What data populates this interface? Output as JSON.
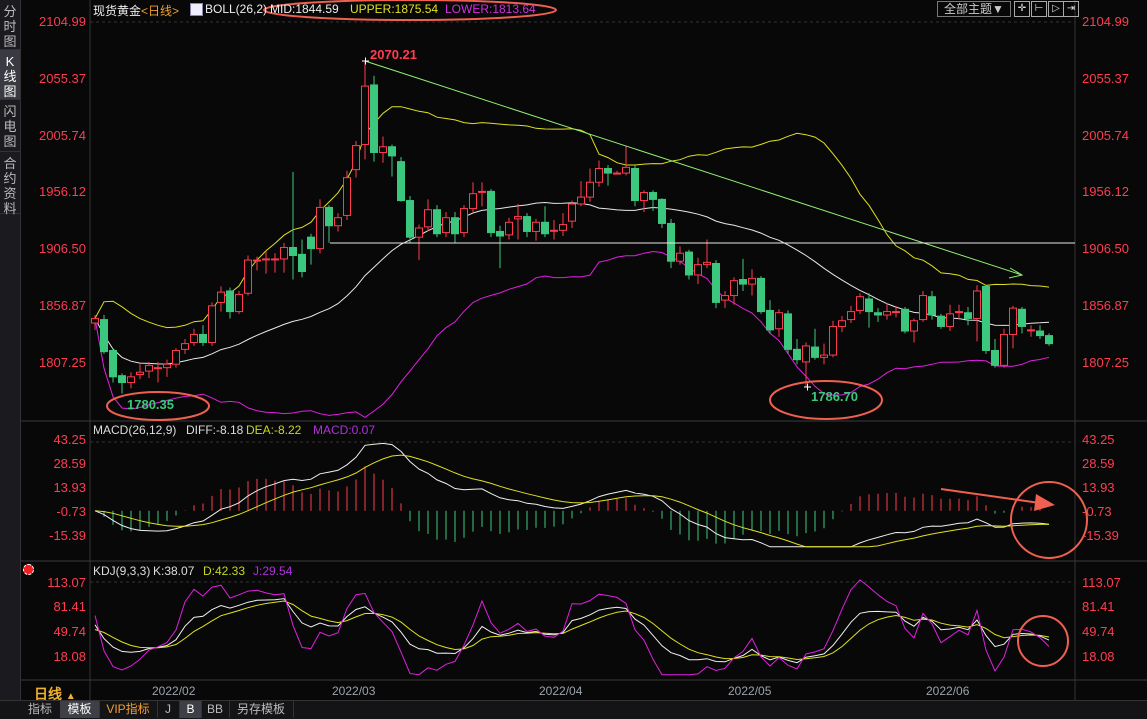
{
  "sidebar": {
    "tabs": [
      {
        "label": "分时图",
        "active": false
      },
      {
        "label": "K线图",
        "active": true
      },
      {
        "label": "闪电图",
        "active": false
      },
      {
        "label": "合约资料",
        "active": false
      }
    ]
  },
  "header": {
    "symbol": "现货黄金",
    "period": "<日线>",
    "boll_label": "BOLL(26,2)",
    "mid": "MID:1844.59",
    "upper": "UPPER:1875.54",
    "lower": "LOWER:1813.64",
    "theme_button": "全部主题▼",
    "toolbar_icons": [
      "crosshair-icon",
      "zoom-range-icon",
      "play-range-icon",
      "move-right-icon"
    ]
  },
  "macd_header": {
    "label": "MACD(26,12,9)",
    "diff": "DIFF:-8.18",
    "dea": "DEA:-8.22",
    "macd": "MACD:0.07"
  },
  "kdj_header": {
    "label": "KDJ(9,3,3)",
    "k": "K:38.07",
    "d": "D:42.33",
    "j": "J:29.54"
  },
  "footer": {
    "period_label": "日线",
    "period_arrow": "▲",
    "tabs": [
      {
        "label": "指标",
        "active": false
      },
      {
        "label": "模板",
        "active": true
      },
      {
        "label": "VIP指标",
        "active": false
      },
      {
        "label": "J",
        "active": false
      },
      {
        "label": "B",
        "active": true
      },
      {
        "label": "BB",
        "active": false
      },
      {
        "label": "另存模板",
        "active": false
      }
    ]
  },
  "colors": {
    "up": "#ff3b4f",
    "down": "#3cc77e",
    "mid": "#e8e8e8",
    "upper": "#e0e020",
    "lower": "#e020e0",
    "trend": "#90ee70",
    "annotation": "#f06050",
    "axis_text": "#ff3c50"
  },
  "chart_data": [
    {
      "type": "candlestick",
      "title": "现货黄金<日线>",
      "y_ticks": [
        "2104.99",
        "2055.37",
        "2005.74",
        "1956.12",
        "1906.50",
        "1856.87",
        "1807.25"
      ],
      "ylim": [
        1757,
        2108.5
      ],
      "x_ticks": [
        "2022/02",
        "2022/03",
        "2022/04",
        "2022/05",
        "2022/06"
      ],
      "ohlc_fields": [
        "open",
        "high",
        "low",
        "close"
      ],
      "candles": [
        [
          1842,
          1849,
          1836,
          1846
        ],
        [
          1845,
          1849,
          1815,
          1817
        ],
        [
          1818,
          1820,
          1790,
          1795
        ],
        [
          1796,
          1798,
          1780.35,
          1790
        ],
        [
          1790,
          1799,
          1785,
          1795
        ],
        [
          1797,
          1806,
          1793,
          1799
        ],
        [
          1800,
          1808,
          1794,
          1805
        ],
        [
          1803,
          1808,
          1790,
          1803
        ],
        [
          1803,
          1810,
          1795,
          1806
        ],
        [
          1806,
          1820,
          1803,
          1818
        ],
        [
          1819,
          1828,
          1815,
          1824
        ],
        [
          1825,
          1837,
          1822,
          1832
        ],
        [
          1832,
          1840,
          1822,
          1825
        ],
        [
          1825,
          1860,
          1822,
          1857
        ],
        [
          1860,
          1874,
          1852,
          1869
        ],
        [
          1870,
          1873,
          1846,
          1852
        ],
        [
          1852,
          1870,
          1850,
          1867
        ],
        [
          1868,
          1901,
          1866,
          1897
        ],
        [
          1897,
          1900,
          1888,
          1897
        ],
        [
          1898,
          1905,
          1885,
          1898
        ],
        [
          1898,
          1903,
          1886,
          1898
        ],
        [
          1898,
          1912,
          1886,
          1908
        ],
        [
          1908,
          1974,
          1880,
          1901
        ],
        [
          1902,
          1915,
          1882,
          1887
        ],
        [
          1917,
          1920,
          1893,
          1907
        ],
        [
          1907,
          1950,
          1903,
          1943
        ],
        [
          1943,
          1945,
          1912,
          1927
        ],
        [
          1927,
          1938,
          1922,
          1934
        ],
        [
          1936,
          1975,
          1932,
          1969
        ],
        [
          1976,
          2001,
          1969,
          1997
        ],
        [
          1998,
          2070.21,
          1985,
          2049
        ],
        [
          2050,
          2058,
          1983,
          1991
        ],
        [
          1991,
          2005,
          1982,
          1996
        ],
        [
          1996,
          1998,
          1970,
          1988
        ],
        [
          1983,
          1987,
          1948,
          1949
        ],
        [
          1949,
          1953,
          1912,
          1917
        ],
        [
          1917,
          1928,
          1897,
          1925
        ],
        [
          1926,
          1950,
          1922,
          1941
        ],
        [
          1941,
          1945,
          1917,
          1920
        ],
        [
          1921,
          1939,
          1917,
          1934
        ],
        [
          1934,
          1939,
          1912,
          1920
        ],
        [
          1921,
          1945,
          1917,
          1942
        ],
        [
          1942,
          1965,
          1938,
          1955
        ],
        [
          1957,
          1965,
          1944,
          1957
        ],
        [
          1957,
          1959,
          1917,
          1921
        ],
        [
          1922,
          1927,
          1890,
          1918
        ],
        [
          1919,
          1934,
          1915,
          1930
        ],
        [
          1933,
          1946,
          1915,
          1935
        ],
        [
          1935,
          1938,
          1917,
          1922
        ],
        [
          1922,
          1933,
          1914,
          1930
        ],
        [
          1930,
          1944,
          1917,
          1920
        ],
        [
          1923,
          1932,
          1915,
          1923
        ],
        [
          1923,
          1938,
          1918,
          1928
        ],
        [
          1931,
          1949,
          1925,
          1946
        ],
        [
          1946,
          1966,
          1944,
          1952
        ],
        [
          1952,
          1977,
          1948,
          1965
        ],
        [
          1965,
          1984,
          1961,
          1977
        ],
        [
          1977,
          1980,
          1962,
          1973
        ],
        [
          1973,
          1975,
          1972,
          1973
        ],
        [
          1973,
          1997,
          1971,
          1978
        ],
        [
          1977,
          1980,
          1944,
          1949
        ],
        [
          1949,
          1958,
          1939,
          1956
        ],
        [
          1956,
          1958,
          1940,
          1950
        ],
        [
          1950,
          1951,
          1925,
          1929
        ],
        [
          1929,
          1933,
          1890,
          1896
        ],
        [
          1896,
          1909,
          1893,
          1903
        ],
        [
          1904,
          1906,
          1880,
          1884
        ],
        [
          1884,
          1899,
          1876,
          1893
        ],
        [
          1893,
          1915,
          1890,
          1895
        ],
        [
          1894,
          1897,
          1855,
          1860
        ],
        [
          1862,
          1870,
          1855,
          1866
        ],
        [
          1866,
          1882,
          1858,
          1879
        ],
        [
          1880,
          1898,
          1870,
          1876
        ],
        [
          1876,
          1889,
          1866,
          1881
        ],
        [
          1881,
          1883,
          1850,
          1852
        ],
        [
          1853,
          1862,
          1833,
          1836
        ],
        [
          1837,
          1854,
          1830,
          1851
        ],
        [
          1850,
          1853,
          1815,
          1819
        ],
        [
          1819,
          1828,
          1806,
          1810
        ],
        [
          1808,
          1825,
          1786.7,
          1822
        ],
        [
          1821,
          1837,
          1810,
          1812
        ],
        [
          1812,
          1824,
          1806,
          1814
        ],
        [
          1814,
          1844,
          1812,
          1839
        ],
        [
          1839,
          1848,
          1834,
          1844
        ],
        [
          1845,
          1857,
          1842,
          1852
        ],
        [
          1853,
          1868,
          1850,
          1865
        ],
        [
          1863,
          1868,
          1838,
          1852
        ],
        [
          1851,
          1855,
          1843,
          1849
        ],
        [
          1849,
          1859,
          1845,
          1852
        ],
        [
          1852,
          1857,
          1847,
          1852
        ],
        [
          1854,
          1856,
          1833,
          1835
        ],
        [
          1835,
          1846,
          1825,
          1844
        ],
        [
          1845,
          1870,
          1843,
          1866
        ],
        [
          1865,
          1870,
          1845,
          1849
        ],
        [
          1848,
          1850,
          1837,
          1839
        ],
        [
          1839,
          1858,
          1835,
          1850
        ],
        [
          1852,
          1858,
          1845,
          1852
        ],
        [
          1851,
          1856,
          1840,
          1846
        ],
        [
          1846,
          1875,
          1826,
          1870
        ],
        [
          1874,
          1875,
          1815,
          1818
        ],
        [
          1818,
          1828,
          1803,
          1805
        ],
        [
          1805,
          1837,
          1803,
          1832
        ],
        [
          1832,
          1857,
          1820,
          1855
        ],
        [
          1854,
          1856,
          1833,
          1839
        ],
        [
          1836,
          1840,
          1830,
          1836
        ],
        [
          1835,
          1840,
          1828,
          1831
        ],
        [
          1831,
          1833,
          1822,
          1824
        ]
      ],
      "annotations": {
        "high_label": "2070.21",
        "low_label_1": "1780.35",
        "low_label_2": "1786.70"
      }
    },
    {
      "type": "bar+line",
      "title": "MACD(26,12,9)",
      "y_ticks": [
        "43.25",
        "28.59",
        "13.93",
        "-0.73",
        "-15.39"
      ],
      "ylim": [
        -22,
        48
      ]
    },
    {
      "type": "line",
      "title": "KDJ(9,3,3)",
      "y_ticks": [
        "113.07",
        "81.41",
        "49.74",
        "18.08"
      ],
      "ylim": [
        -5,
        125
      ]
    }
  ]
}
